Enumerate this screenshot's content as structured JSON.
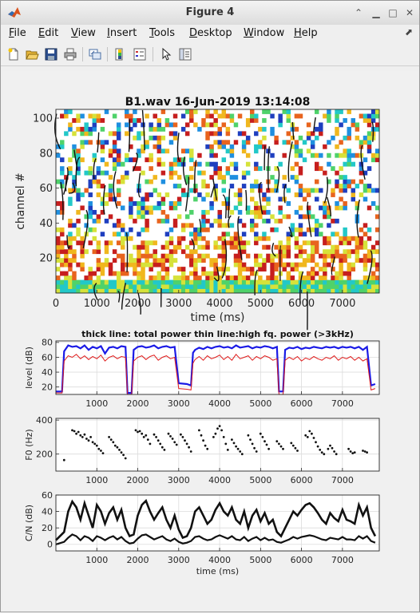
{
  "window": {
    "title": "Figure 4",
    "buttons": [
      "up-icon",
      "minimize-icon",
      "maximize-icon",
      "close-icon"
    ]
  },
  "menu": {
    "items": [
      {
        "label": "File",
        "u": "F",
        "rest": "ile"
      },
      {
        "label": "Edit",
        "u": "E",
        "rest": "dit"
      },
      {
        "label": "View",
        "u": "V",
        "rest": "iew"
      },
      {
        "label": "Insert",
        "u": "I",
        "rest": "nsert"
      },
      {
        "label": "Tools",
        "u": "T",
        "rest": "ools"
      },
      {
        "label": "Desktop",
        "u": "D",
        "rest": "esktop"
      },
      {
        "label": "Window",
        "u": "W",
        "rest": "indow"
      },
      {
        "label": "Help",
        "u": "H",
        "rest": "elp"
      }
    ]
  },
  "toolbar": {
    "icons": [
      "new-figure-icon",
      "open-file-icon",
      "save-icon",
      "print-icon",
      "link-plot-icon",
      "colorbar-icon",
      "legend-icon",
      "edit-pointer-icon",
      "property-inspector-icon"
    ]
  },
  "chart_data": [
    {
      "type": "heatmap",
      "title": "B1.wav  16-Jun-2019 13:14:08",
      "xlabel": "time (ms)",
      "ylabel": "channel #",
      "xlim": [
        0,
        7900
      ],
      "ylim": [
        0,
        105
      ],
      "xticks": [
        0,
        1000,
        2000,
        3000,
        4000,
        5000,
        6000,
        7000
      ],
      "yticks": [
        20,
        40,
        60,
        80,
        100
      ]
    },
    {
      "type": "line",
      "title": "thick line: total power thin line:high fq. power (>3kHz)",
      "xlabel": "",
      "ylabel": "level (dB)",
      "xlim": [
        0,
        7900
      ],
      "ylim": [
        10,
        82
      ],
      "xticks": [
        1000,
        2000,
        3000,
        4000,
        5000,
        6000,
        7000
      ],
      "yticks": [
        20,
        40,
        60,
        80
      ],
      "x": [
        0,
        150,
        200,
        300,
        400,
        500,
        600,
        700,
        800,
        900,
        1000,
        1100,
        1200,
        1300,
        1400,
        1500,
        1600,
        1700,
        1750,
        1800,
        1850,
        1900,
        2000,
        2100,
        2200,
        2300,
        2400,
        2500,
        2600,
        2700,
        2800,
        2900,
        3000,
        3200,
        3300,
        3350,
        3400,
        3500,
        3600,
        3700,
        3800,
        3900,
        4000,
        4100,
        4200,
        4300,
        4400,
        4500,
        4600,
        4700,
        4800,
        4900,
        5000,
        5100,
        5200,
        5300,
        5400,
        5450,
        5500,
        5550,
        5600,
        5700,
        5800,
        5900,
        6000,
        6100,
        6200,
        6300,
        6400,
        6500,
        6600,
        6700,
        6800,
        6900,
        7000,
        7100,
        7200,
        7300,
        7400,
        7500,
        7600,
        7700,
        7800
      ],
      "series": [
        {
          "name": "",
          "values": [
            14,
            14,
            68,
            76,
            74,
            75,
            72,
            76,
            70,
            74,
            72,
            75,
            65,
            73,
            74,
            72,
            75,
            74,
            12,
            12,
            12,
            70,
            74,
            75,
            73,
            74,
            76,
            72,
            74,
            75,
            73,
            74,
            25,
            24,
            22,
            66,
            70,
            73,
            71,
            74,
            72,
            74,
            75,
            73,
            74,
            72,
            76,
            73,
            74,
            75,
            72,
            74,
            73,
            75,
            74,
            72,
            74,
            14,
            14,
            14,
            70,
            73,
            72,
            74,
            71,
            73,
            72,
            74,
            73,
            72,
            74,
            73,
            74,
            72,
            74,
            73,
            74,
            72,
            74,
            70,
            74,
            22,
            24
          ]
        },
        {
          "name": "",
          "values": [
            12,
            12,
            55,
            62,
            60,
            64,
            58,
            62,
            57,
            61,
            58,
            63,
            55,
            60,
            62,
            58,
            61,
            60,
            10,
            10,
            10,
            55,
            60,
            62,
            57,
            61,
            63,
            56,
            60,
            62,
            58,
            60,
            18,
            17,
            16,
            52,
            57,
            61,
            56,
            62,
            58,
            60,
            63,
            57,
            61,
            56,
            64,
            58,
            60,
            62,
            56,
            61,
            58,
            62,
            60,
            56,
            58,
            10,
            10,
            10,
            56,
            60,
            57,
            61,
            55,
            59,
            57,
            61,
            58,
            56,
            60,
            58,
            62,
            56,
            60,
            58,
            61,
            56,
            60,
            55,
            58,
            16,
            18
          ]
        }
      ]
    },
    {
      "type": "scatter",
      "title": "",
      "xlabel": "",
      "ylabel": "F0 (Hz)",
      "xlim": [
        0,
        7900
      ],
      "ylim": [
        100,
        410
      ],
      "xticks": [
        1000,
        2000,
        3000,
        4000,
        5000,
        6000,
        7000
      ],
      "yticks": [
        200,
        400
      ],
      "x": [
        200,
        400,
        450,
        500,
        550,
        600,
        650,
        700,
        750,
        800,
        850,
        900,
        950,
        1000,
        1050,
        1100,
        1150,
        1300,
        1350,
        1400,
        1450,
        1500,
        1550,
        1600,
        1650,
        1700,
        1950,
        2000,
        2050,
        2100,
        2150,
        2200,
        2250,
        2300,
        2400,
        2450,
        2500,
        2550,
        2600,
        2650,
        2750,
        2800,
        2850,
        2900,
        2950,
        3050,
        3100,
        3150,
        3200,
        3250,
        3300,
        3500,
        3550,
        3600,
        3650,
        3700,
        3850,
        3900,
        3950,
        4000,
        4050,
        4100,
        4150,
        4200,
        4300,
        4350,
        4400,
        4450,
        4500,
        4550,
        4700,
        4750,
        4800,
        4850,
        4900,
        5000,
        5050,
        5100,
        5150,
        5200,
        5400,
        5450,
        5500,
        5550,
        5750,
        5800,
        5850,
        5900,
        6100,
        6150,
        6200,
        6250,
        6300,
        6350,
        6400,
        6450,
        6500,
        6550,
        6650,
        6700,
        6750,
        6800,
        6850,
        7150,
        7200,
        7250,
        7300,
        7500,
        7550,
        7600
      ],
      "series": [
        {
          "name": "",
          "values": [
            165,
            340,
            335,
            320,
            330,
            310,
            300,
            315,
            290,
            280,
            300,
            270,
            260,
            250,
            230,
            220,
            205,
            300,
            285,
            270,
            250,
            240,
            225,
            210,
            195,
            175,
            340,
            330,
            335,
            320,
            300,
            310,
            285,
            260,
            315,
            300,
            280,
            260,
            240,
            225,
            320,
            305,
            290,
            270,
            255,
            315,
            300,
            280,
            260,
            240,
            215,
            340,
            310,
            280,
            250,
            230,
            300,
            320,
            350,
            365,
            340,
            300,
            260,
            225,
            285,
            265,
            245,
            230,
            215,
            200,
            310,
            285,
            260,
            235,
            215,
            320,
            300,
            275,
            255,
            230,
            275,
            260,
            245,
            230,
            265,
            250,
            235,
            220,
            310,
            300,
            335,
            320,
            295,
            270,
            245,
            225,
            210,
            200,
            230,
            250,
            235,
            215,
            200,
            230,
            215,
            205,
            210,
            220,
            215,
            210
          ]
        }
      ]
    },
    {
      "type": "line",
      "title": "",
      "xlabel": "time (ms)",
      "ylabel": "C/N (dB)",
      "xlim": [
        0,
        7900
      ],
      "ylim": [
        -8,
        60
      ],
      "xticks": [
        1000,
        2000,
        3000,
        4000,
        5000,
        6000,
        7000
      ],
      "yticks": [
        0,
        20,
        40,
        60
      ],
      "x": [
        0,
        200,
        300,
        400,
        500,
        600,
        700,
        800,
        900,
        1000,
        1100,
        1200,
        1300,
        1400,
        1500,
        1600,
        1700,
        1800,
        1900,
        2000,
        2100,
        2200,
        2300,
        2400,
        2500,
        2600,
        2700,
        2800,
        2900,
        3000,
        3100,
        3200,
        3300,
        3400,
        3500,
        3600,
        3700,
        3800,
        3900,
        4000,
        4100,
        4200,
        4300,
        4400,
        4500,
        4600,
        4700,
        4800,
        4900,
        5000,
        5100,
        5200,
        5300,
        5400,
        5500,
        5600,
        5700,
        5800,
        5900,
        6000,
        6100,
        6200,
        6300,
        6400,
        6500,
        6600,
        6700,
        6800,
        6900,
        7000,
        7100,
        7200,
        7300,
        7400,
        7500,
        7600,
        7700,
        7800
      ],
      "series": [
        {
          "name": "",
          "values": [
            5,
            15,
            40,
            52,
            45,
            30,
            50,
            35,
            20,
            48,
            40,
            25,
            38,
            45,
            30,
            42,
            20,
            10,
            12,
            35,
            48,
            53,
            40,
            30,
            38,
            45,
            30,
            20,
            35,
            18,
            8,
            10,
            20,
            40,
            45,
            35,
            25,
            30,
            42,
            50,
            40,
            35,
            45,
            30,
            25,
            40,
            20,
            35,
            42,
            28,
            38,
            25,
            30,
            15,
            10,
            20,
            30,
            40,
            35,
            42,
            48,
            50,
            45,
            38,
            30,
            25,
            38,
            32,
            28,
            42,
            30,
            28,
            25,
            48,
            35,
            45,
            20,
            10
          ]
        },
        {
          "name": "",
          "values": [
            0,
            3,
            8,
            12,
            10,
            5,
            10,
            8,
            4,
            10,
            8,
            5,
            8,
            10,
            6,
            9,
            4,
            1,
            2,
            7,
            11,
            12,
            9,
            6,
            8,
            10,
            6,
            4,
            7,
            3,
            1,
            2,
            4,
            9,
            10,
            7,
            5,
            6,
            9,
            11,
            9,
            7,
            10,
            6,
            5,
            9,
            4,
            7,
            9,
            5,
            8,
            5,
            6,
            3,
            2,
            4,
            6,
            9,
            7,
            9,
            10,
            11,
            10,
            8,
            6,
            5,
            8,
            7,
            6,
            9,
            6,
            6,
            5,
            10,
            7,
            10,
            4,
            2
          ]
        }
      ]
    }
  ]
}
